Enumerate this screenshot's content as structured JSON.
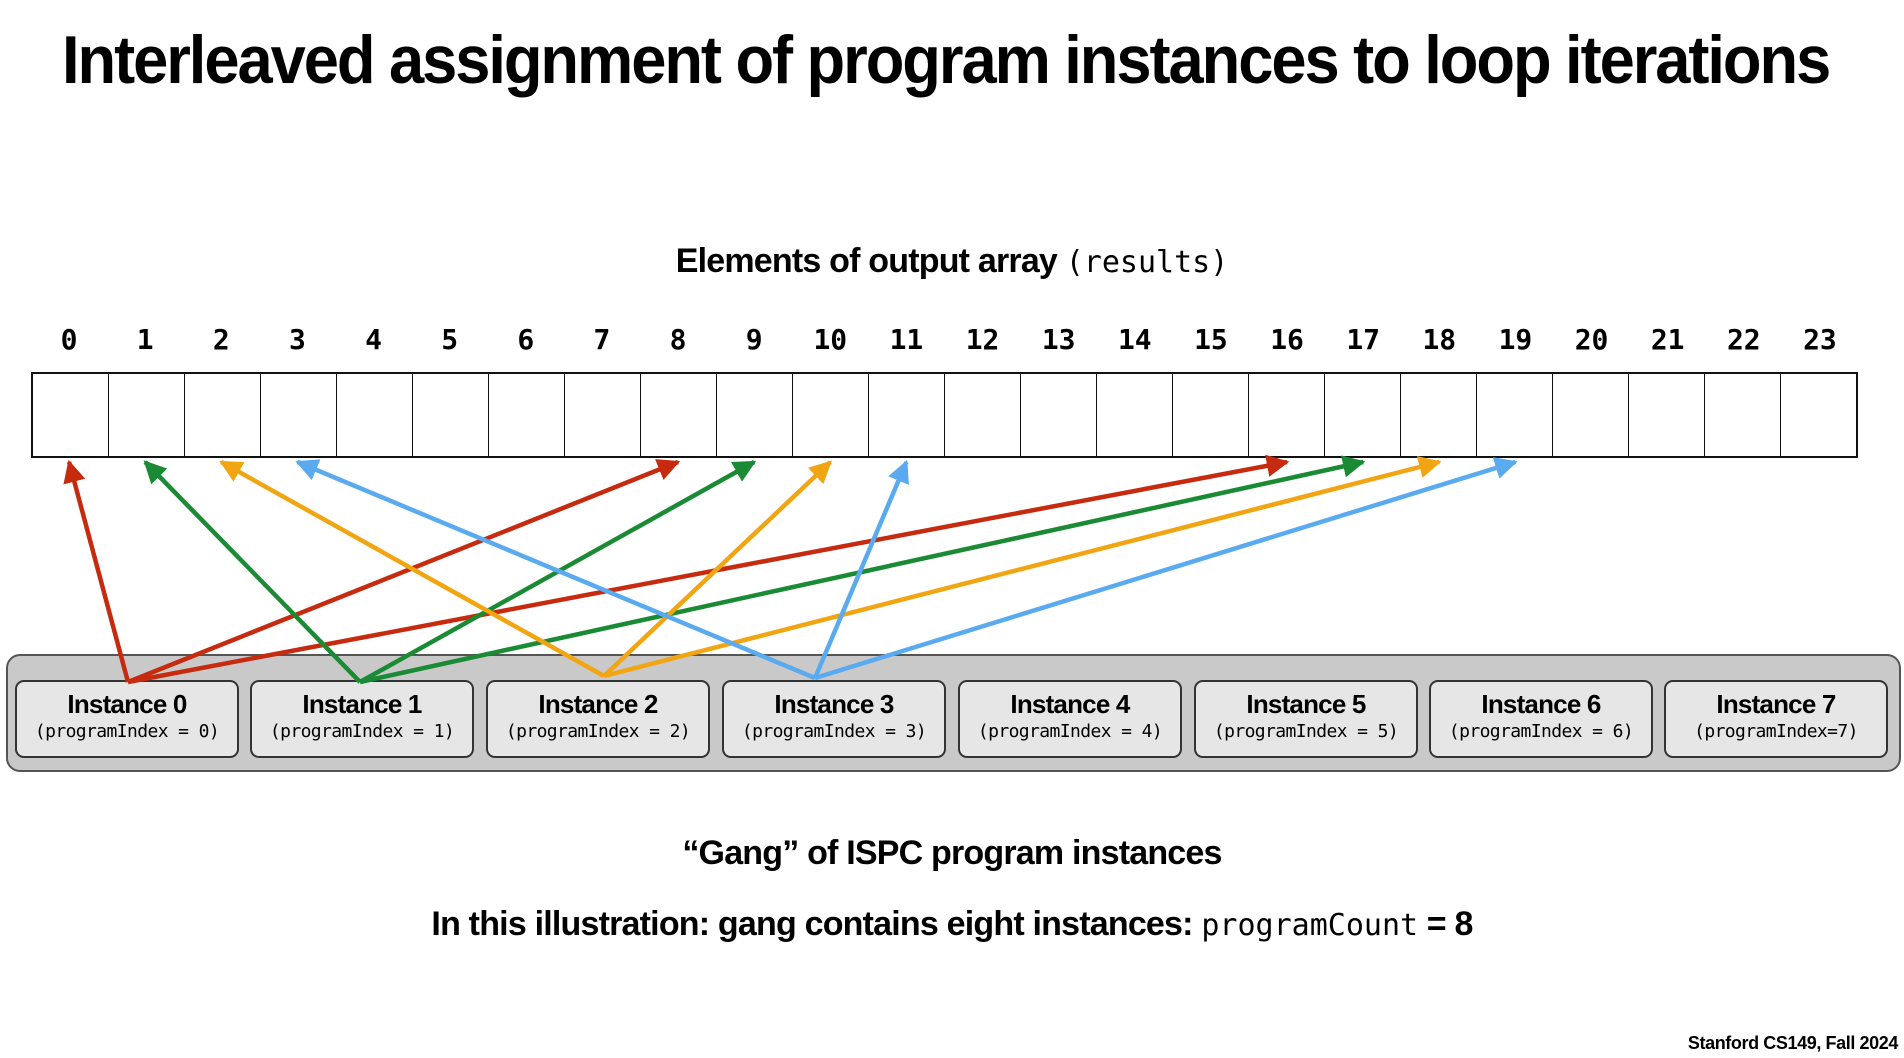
{
  "title": "Interleaved assignment of program instances to loop iterations",
  "array": {
    "heading_text": "Elements of output array",
    "heading_code": "(results)",
    "indices": [
      "0",
      "1",
      "2",
      "3",
      "4",
      "5",
      "6",
      "7",
      "8",
      "9",
      "10",
      "11",
      "12",
      "13",
      "14",
      "15",
      "16",
      "17",
      "18",
      "19",
      "20",
      "21",
      "22",
      "23"
    ]
  },
  "instances": [
    {
      "name": "Instance 0",
      "program_index": "(programIndex = 0)",
      "color": "#c62a0f"
    },
    {
      "name": "Instance 1",
      "program_index": "(programIndex = 1)",
      "color": "#1a8a35"
    },
    {
      "name": "Instance 2",
      "program_index": "(programIndex = 2)",
      "color": "#f2a512"
    },
    {
      "name": "Instance 3",
      "program_index": "(programIndex = 3)",
      "color": "#5aaaf0"
    },
    {
      "name": "Instance 4",
      "program_index": "(programIndex = 4)",
      "color": null
    },
    {
      "name": "Instance 5",
      "program_index": "(programIndex = 5)",
      "color": null
    },
    {
      "name": "Instance 6",
      "program_index": "(programIndex = 6)",
      "color": null
    },
    {
      "name": "Instance 7",
      "program_index": "(programIndex=7)",
      "color": null
    }
  ],
  "assignments": [
    {
      "instance": 0,
      "elements": [
        0,
        8,
        16
      ]
    },
    {
      "instance": 1,
      "elements": [
        1,
        9,
        17
      ]
    },
    {
      "instance": 2,
      "elements": [
        2,
        10,
        18
      ]
    },
    {
      "instance": 3,
      "elements": [
        3,
        11,
        19
      ]
    }
  ],
  "gang_caption": "“Gang” of ISPC program instances",
  "count_caption": {
    "text": "In this illustration: gang contains eight instances:",
    "code": "programCount",
    "value": "= 8"
  },
  "footer": "Stanford CS149, Fall 2024"
}
